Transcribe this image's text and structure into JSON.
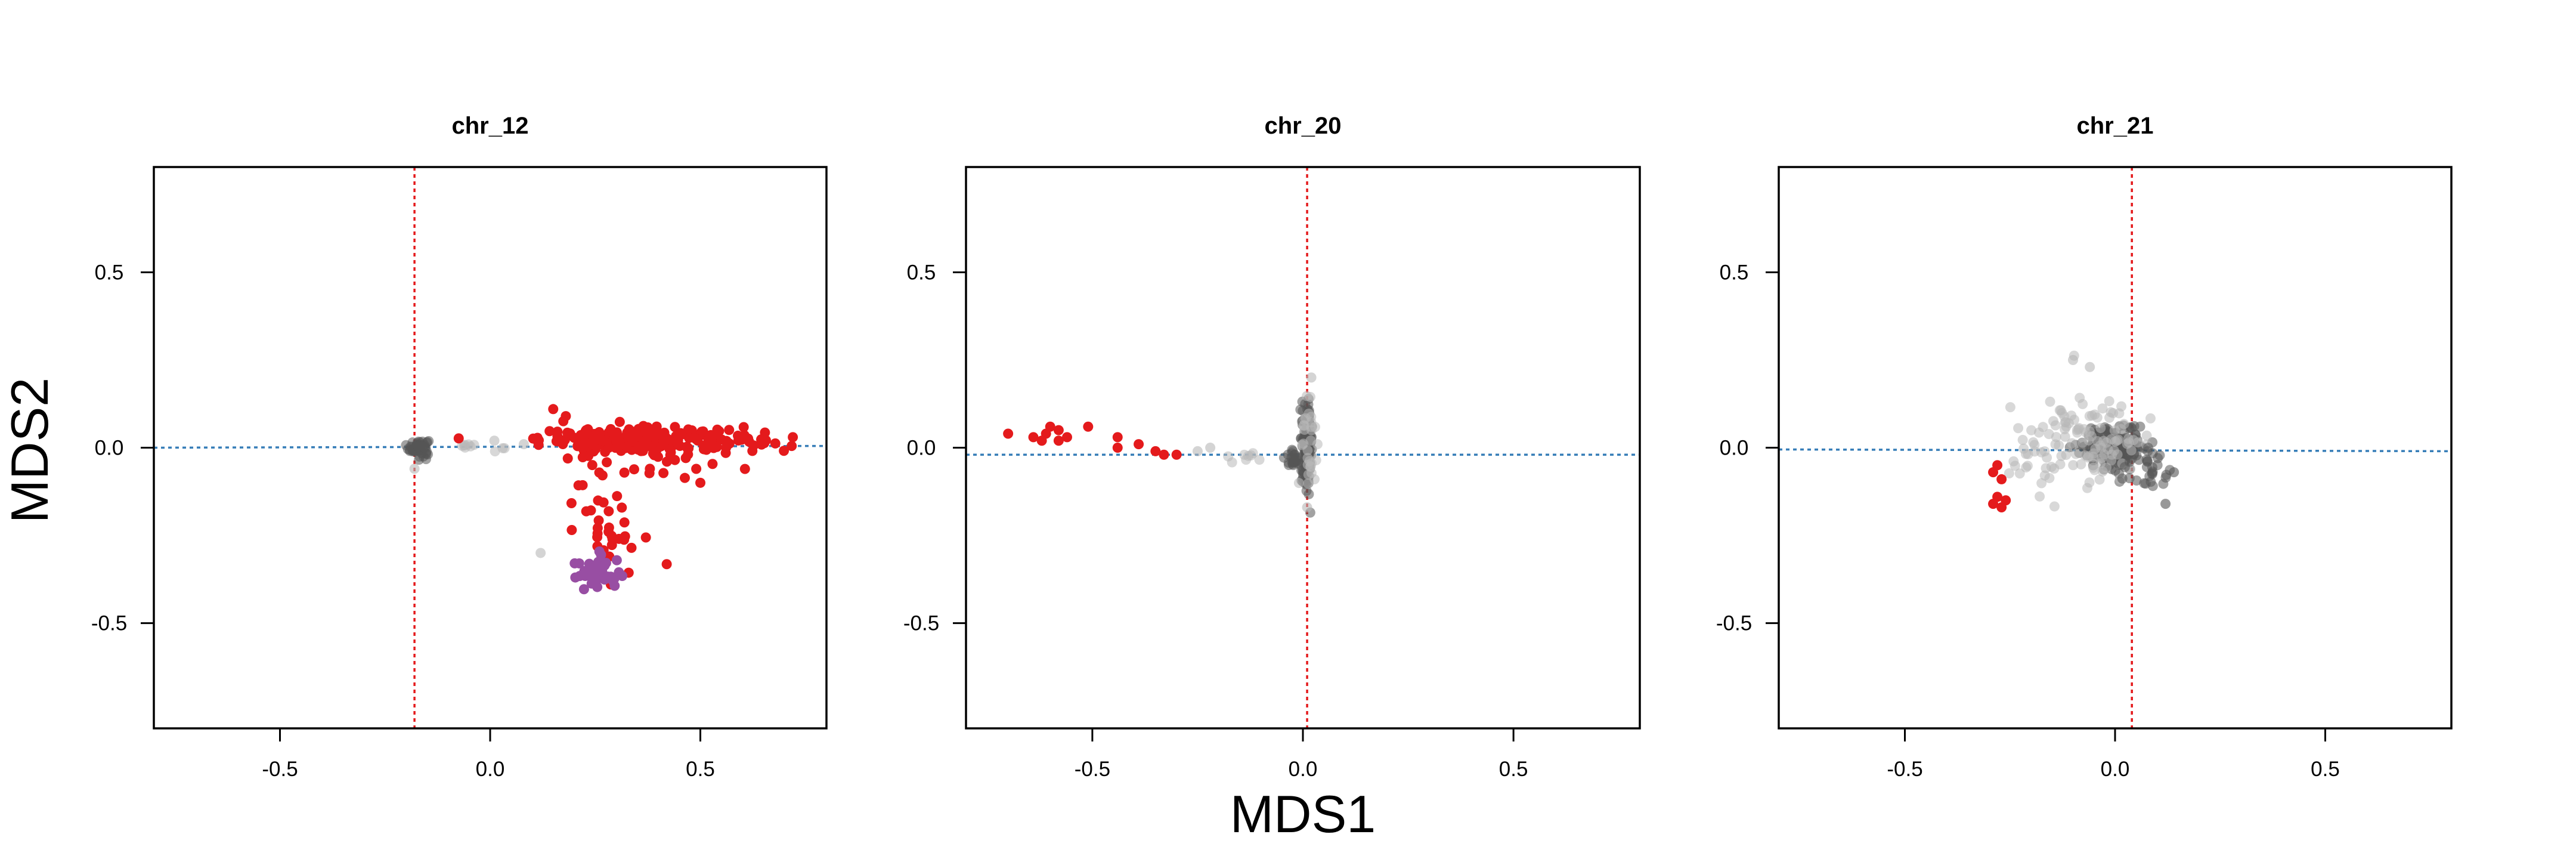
{
  "chart_data": {
    "type": "scatter",
    "xlabel": "MDS1",
    "ylabel": "MDS2",
    "xlim": [
      -0.8,
      0.8
    ],
    "ylim": [
      -0.8,
      0.8
    ],
    "xticks": [
      "-0.5",
      "0.0",
      "0.5"
    ],
    "yticks": [
      "-0.5",
      "0.0",
      "0.5"
    ],
    "tick_values": [
      -0.5,
      0.0,
      0.5
    ],
    "grid": false,
    "legend": "none",
    "colors": {
      "red": "#e41a1c",
      "purple": "#984ea3",
      "gray": "#555555",
      "light_gray": "#b8b8b8",
      "vline": "#e41a1c",
      "hline": "#377eb8"
    },
    "panels": [
      {
        "title": "chr_12",
        "vline_x": -0.18,
        "hline": {
          "y0": 0.0,
          "y1": 0.005
        },
        "clusters": [
          {
            "color": "gray",
            "cx": -0.17,
            "cy": 0.0,
            "sx": 0.012,
            "sy": 0.012,
            "n": 60
          },
          {
            "color": "light_gray",
            "cx": -0.05,
            "cy": 0.005,
            "sx": 0.05,
            "sy": 0.012,
            "n": 10
          },
          {
            "color": "red",
            "cx": 0.38,
            "cy": 0.02,
            "sx": 0.13,
            "sy": 0.018,
            "n": 230
          },
          {
            "color": "red",
            "cx": 0.27,
            "cy": -0.17,
            "sx": 0.05,
            "sy": 0.09,
            "n": 40
          },
          {
            "color": "red",
            "cx": 0.44,
            "cy": -0.06,
            "sx": 0.06,
            "sy": 0.015,
            "n": 12
          },
          {
            "color": "purple",
            "cx": 0.25,
            "cy": -0.36,
            "sx": 0.03,
            "sy": 0.025,
            "n": 38
          }
        ],
        "points": [
          {
            "x": 0.15,
            "y": 0.11,
            "color": "red"
          },
          {
            "x": 0.18,
            "y": 0.09,
            "color": "red"
          },
          {
            "x": 0.12,
            "y": -0.3,
            "color": "light_gray"
          },
          {
            "x": -0.18,
            "y": -0.06,
            "color": "light_gray"
          },
          {
            "x": 0.72,
            "y": 0.03,
            "color": "red"
          },
          {
            "x": 0.5,
            "y": -0.1,
            "color": "red"
          },
          {
            "x": 0.01,
            "y": 0.02,
            "color": "light_gray"
          },
          {
            "x": 0.08,
            "y": 0.01,
            "color": "light_gray"
          }
        ]
      },
      {
        "title": "chr_20",
        "vline_x": 0.01,
        "hline": {
          "y0": -0.02,
          "y1": -0.02
        },
        "clusters": [
          {
            "color": "gray",
            "cx": 0.01,
            "cy": 0.01,
            "sx": 0.006,
            "sy": 0.055,
            "n": 160
          },
          {
            "color": "gray",
            "cx": -0.02,
            "cy": -0.03,
            "sx": 0.008,
            "sy": 0.012,
            "n": 25
          },
          {
            "color": "light_gray",
            "cx": 0.01,
            "cy": 0.02,
            "sx": 0.01,
            "sy": 0.08,
            "n": 30
          },
          {
            "color": "light_gray",
            "cx": -0.15,
            "cy": -0.03,
            "sx": 0.04,
            "sy": 0.008,
            "n": 8
          }
        ],
        "points": [
          {
            "x": -0.7,
            "y": 0.04,
            "color": "red"
          },
          {
            "x": -0.64,
            "y": 0.03,
            "color": "red"
          },
          {
            "x": -0.61,
            "y": 0.04,
            "color": "red"
          },
          {
            "x": -0.6,
            "y": 0.06,
            "color": "red"
          },
          {
            "x": -0.58,
            "y": 0.05,
            "color": "red"
          },
          {
            "x": -0.58,
            "y": 0.02,
            "color": "red"
          },
          {
            "x": -0.62,
            "y": 0.02,
            "color": "red"
          },
          {
            "x": -0.56,
            "y": 0.03,
            "color": "red"
          },
          {
            "x": -0.51,
            "y": 0.06,
            "color": "red"
          },
          {
            "x": -0.44,
            "y": 0.03,
            "color": "red"
          },
          {
            "x": -0.44,
            "y": 0.0,
            "color": "red"
          },
          {
            "x": -0.39,
            "y": 0.01,
            "color": "red"
          },
          {
            "x": -0.35,
            "y": -0.01,
            "color": "red"
          },
          {
            "x": -0.33,
            "y": -0.02,
            "color": "red"
          },
          {
            "x": -0.3,
            "y": -0.02,
            "color": "red"
          },
          {
            "x": -0.25,
            "y": -0.01,
            "color": "light_gray"
          },
          {
            "x": -0.22,
            "y": 0.0,
            "color": "light_gray"
          },
          {
            "x": 0.01,
            "y": -0.17,
            "color": "light_gray"
          },
          {
            "x": 0.02,
            "y": 0.2,
            "color": "light_gray"
          }
        ]
      },
      {
        "title": "chr_21",
        "vline_x": 0.04,
        "hline": {
          "y0": -0.005,
          "y1": -0.01
        },
        "clusters": [
          {
            "color": "gray",
            "cx": 0.0,
            "cy": 0.0,
            "sx": 0.04,
            "sy": 0.03,
            "n": 180
          },
          {
            "color": "light_gray",
            "cx": -0.06,
            "cy": 0.02,
            "sx": 0.07,
            "sy": 0.07,
            "n": 110
          },
          {
            "color": "gray",
            "cx": 0.08,
            "cy": -0.06,
            "sx": 0.03,
            "sy": 0.03,
            "n": 25
          },
          {
            "color": "light_gray",
            "cx": -0.2,
            "cy": -0.05,
            "sx": 0.04,
            "sy": 0.04,
            "n": 15
          }
        ],
        "points": [
          {
            "x": -0.28,
            "y": -0.05,
            "color": "red"
          },
          {
            "x": -0.29,
            "y": -0.07,
            "color": "red"
          },
          {
            "x": -0.27,
            "y": -0.09,
            "color": "red"
          },
          {
            "x": -0.28,
            "y": -0.14,
            "color": "red"
          },
          {
            "x": -0.29,
            "y": -0.16,
            "color": "red"
          },
          {
            "x": -0.27,
            "y": -0.17,
            "color": "red"
          },
          {
            "x": -0.26,
            "y": -0.15,
            "color": "red"
          },
          {
            "x": -0.1,
            "y": 0.25,
            "color": "light_gray"
          },
          {
            "x": -0.06,
            "y": 0.23,
            "color": "light_gray"
          },
          {
            "x": 0.14,
            "y": -0.07,
            "color": "gray"
          },
          {
            "x": 0.12,
            "y": -0.16,
            "color": "gray"
          }
        ]
      }
    ]
  }
}
